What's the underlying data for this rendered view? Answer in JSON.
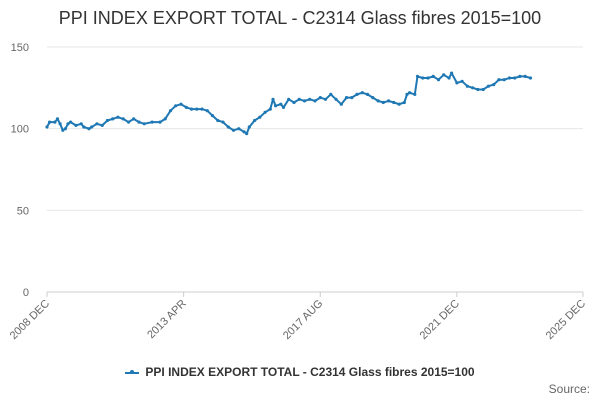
{
  "title": "PPI INDEX EXPORT TOTAL - C2314 Glass fibres 2015=100",
  "source_label": "Source:",
  "colors": {
    "series": "#1f78b4",
    "grid": "#e6e6e6",
    "axis_text": "#666666"
  },
  "chart_data": {
    "type": "line",
    "title": "PPI INDEX EXPORT TOTAL - C2314 Glass fibres 2015=100",
    "xlabel": "",
    "ylabel": "",
    "ylim": [
      0,
      150
    ],
    "yticks": [
      0,
      50,
      100,
      150
    ],
    "xticks": [
      "2008 DEC",
      "2013 APR",
      "2017 AUG",
      "2021 DEC",
      "2025 DEC"
    ],
    "xlim": [
      "2008-12",
      "2025-12"
    ],
    "grid": true,
    "legend_position": "bottom",
    "series": [
      {
        "name": "PPI INDEX EXPORT TOTAL - C2314 Glass fibres 2015=100",
        "points": [
          [
            "2008-12",
            101
          ],
          [
            "2009-01",
            104
          ],
          [
            "2009-03",
            104
          ],
          [
            "2009-04",
            106
          ],
          [
            "2009-05",
            103
          ],
          [
            "2009-06",
            99
          ],
          [
            "2009-07",
            100
          ],
          [
            "2009-08",
            103
          ],
          [
            "2009-09",
            104
          ],
          [
            "2009-11",
            102
          ],
          [
            "2010-01",
            103
          ],
          [
            "2010-02",
            101
          ],
          [
            "2010-04",
            100
          ],
          [
            "2010-05",
            101
          ],
          [
            "2010-07",
            103
          ],
          [
            "2010-09",
            102
          ],
          [
            "2010-11",
            105
          ],
          [
            "2011-01",
            106
          ],
          [
            "2011-03",
            107
          ],
          [
            "2011-05",
            106
          ],
          [
            "2011-07",
            104
          ],
          [
            "2011-09",
            106
          ],
          [
            "2011-11",
            104
          ],
          [
            "2012-01",
            103
          ],
          [
            "2012-04",
            104
          ],
          [
            "2012-07",
            104
          ],
          [
            "2012-09",
            106
          ],
          [
            "2012-11",
            111
          ],
          [
            "2013-01",
            114
          ],
          [
            "2013-03",
            115
          ],
          [
            "2013-05",
            113
          ],
          [
            "2013-07",
            112
          ],
          [
            "2013-09",
            112
          ],
          [
            "2013-11",
            112
          ],
          [
            "2014-01",
            111
          ],
          [
            "2014-03",
            108
          ],
          [
            "2014-05",
            105
          ],
          [
            "2014-07",
            104
          ],
          [
            "2014-09",
            101
          ],
          [
            "2014-11",
            99
          ],
          [
            "2015-01",
            100
          ],
          [
            "2015-03",
            98
          ],
          [
            "2015-04",
            97
          ],
          [
            "2015-05",
            101
          ],
          [
            "2015-07",
            105
          ],
          [
            "2015-09",
            107
          ],
          [
            "2015-11",
            110
          ],
          [
            "2016-01",
            112
          ],
          [
            "2016-02",
            118
          ],
          [
            "2016-03",
            114
          ],
          [
            "2016-05",
            115
          ],
          [
            "2016-06",
            113
          ],
          [
            "2016-08",
            118
          ],
          [
            "2016-10",
            116
          ],
          [
            "2016-12",
            118
          ],
          [
            "2017-02",
            117
          ],
          [
            "2017-04",
            118
          ],
          [
            "2017-06",
            117
          ],
          [
            "2017-08",
            119
          ],
          [
            "2017-10",
            118
          ],
          [
            "2017-12",
            121
          ],
          [
            "2018-02",
            118
          ],
          [
            "2018-04",
            115
          ],
          [
            "2018-06",
            119
          ],
          [
            "2018-08",
            119
          ],
          [
            "2018-10",
            121
          ],
          [
            "2018-12",
            122
          ],
          [
            "2019-02",
            121
          ],
          [
            "2019-04",
            119
          ],
          [
            "2019-06",
            117
          ],
          [
            "2019-08",
            116
          ],
          [
            "2019-10",
            117
          ],
          [
            "2019-12",
            116
          ],
          [
            "2020-02",
            115
          ],
          [
            "2020-04",
            116
          ],
          [
            "2020-05",
            121
          ],
          [
            "2020-06",
            122
          ],
          [
            "2020-08",
            121
          ],
          [
            "2020-09",
            132
          ],
          [
            "2020-11",
            131
          ],
          [
            "2021-01",
            131
          ],
          [
            "2021-03",
            132
          ],
          [
            "2021-05",
            130
          ],
          [
            "2021-07",
            133
          ],
          [
            "2021-09",
            131
          ],
          [
            "2021-10",
            134
          ],
          [
            "2021-12",
            128
          ],
          [
            "2022-02",
            129
          ],
          [
            "2022-04",
            126
          ],
          [
            "2022-06",
            125
          ],
          [
            "2022-08",
            124
          ],
          [
            "2022-10",
            124
          ],
          [
            "2022-12",
            126
          ],
          [
            "2023-02",
            127
          ],
          [
            "2023-04",
            130
          ],
          [
            "2023-06",
            130
          ],
          [
            "2023-08",
            131
          ],
          [
            "2023-10",
            131
          ],
          [
            "2023-12",
            132
          ],
          [
            "2024-02",
            132
          ],
          [
            "2024-04",
            131
          ]
        ]
      }
    ]
  }
}
